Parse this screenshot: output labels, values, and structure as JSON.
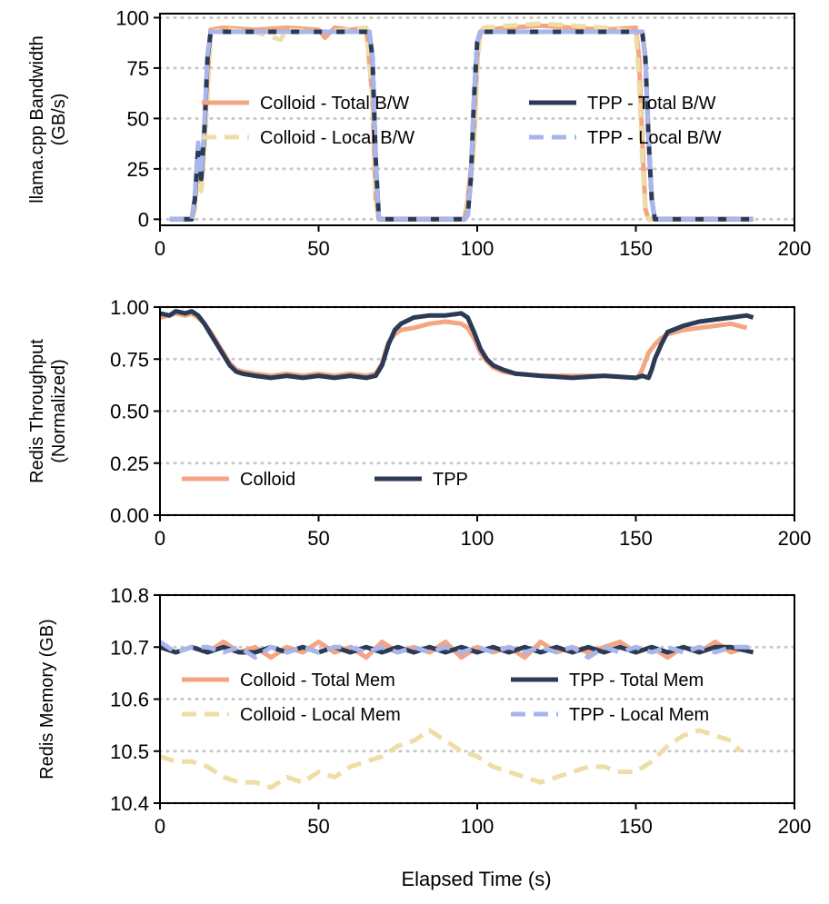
{
  "colors": {
    "colloid_total": "#F4A582",
    "colloid_local": "#EEDDA6",
    "tpp_total": "#2B3A55",
    "tpp_local": "#A9B6EC",
    "grid": "#C8C8C8"
  },
  "shared_xlabel": "Elapsed Time (s)",
  "chart_data": [
    {
      "type": "line",
      "ylabel_line1": "llama.cpp Bandwidth",
      "ylabel_line2": "(GB/s)",
      "xlim": [
        0,
        200
      ],
      "ylim": [
        -3,
        102
      ],
      "xticks": [
        0,
        50,
        100,
        150,
        200
      ],
      "yticks": [
        0,
        25,
        50,
        75,
        100
      ],
      "legend_position": "center",
      "series": [
        {
          "name": "Colloid - Total B/W",
          "color_key": "colloid_total",
          "dash": "solid",
          "x": [
            3,
            10,
            11,
            12,
            13,
            14,
            15,
            16,
            20,
            30,
            40,
            50,
            52,
            55,
            60,
            65,
            67,
            68,
            69,
            70,
            80,
            90,
            96,
            97,
            99,
            100,
            101,
            102,
            110,
            120,
            130,
            140,
            150,
            151,
            152,
            153,
            154,
            160,
            187
          ],
          "y": [
            0,
            0,
            10,
            30,
            18,
            40,
            70,
            94,
            95,
            94,
            95,
            94,
            90,
            95,
            94,
            95,
            60,
            10,
            0,
            0,
            0,
            0,
            0,
            10,
            40,
            80,
            93,
            94,
            95,
            96,
            95,
            94,
            95,
            80,
            40,
            5,
            0,
            0,
            0
          ]
        },
        {
          "name": "Colloid - Local B/W",
          "color_key": "colloid_local",
          "dash": "dashed",
          "x": [
            3,
            10,
            11,
            12,
            13,
            14,
            15,
            16,
            20,
            30,
            38,
            40,
            50,
            60,
            65,
            67,
            68,
            69,
            70,
            80,
            90,
            96,
            97,
            99,
            100,
            101,
            102,
            110,
            120,
            130,
            140,
            150,
            151,
            152,
            153,
            154,
            160,
            187
          ],
          "y": [
            0,
            0,
            5,
            25,
            14,
            35,
            60,
            93,
            94,
            93,
            89,
            94,
            93,
            94,
            95,
            60,
            10,
            0,
            0,
            0,
            0,
            0,
            8,
            35,
            75,
            93,
            95,
            96,
            97,
            96,
            95,
            93,
            70,
            30,
            5,
            0,
            0,
            0
          ]
        },
        {
          "name": "TPP - Total B/W",
          "color_key": "tpp_total",
          "dash": "solid",
          "x": [
            3,
            10,
            11,
            12,
            13,
            14,
            15,
            16,
            20,
            30,
            40,
            50,
            60,
            66,
            67,
            68,
            69,
            70,
            80,
            90,
            96,
            97,
            98,
            99,
            100,
            101,
            110,
            120,
            130,
            140,
            150,
            152,
            153,
            154,
            155,
            156,
            170,
            187
          ],
          "y": [
            0,
            0,
            10,
            35,
            20,
            45,
            80,
            93,
            93,
            93,
            93,
            93,
            93,
            93,
            80,
            30,
            0,
            0,
            0,
            0,
            0,
            2,
            20,
            60,
            88,
            93,
            93,
            93,
            93,
            93,
            93,
            93,
            80,
            40,
            10,
            0,
            0,
            0
          ]
        },
        {
          "name": "TPP - Local B/W",
          "color_key": "tpp_local",
          "dash": "dashed",
          "x": [
            3,
            10,
            11,
            12,
            13,
            14,
            15,
            16,
            20,
            30,
            40,
            50,
            60,
            66,
            67,
            68,
            69,
            70,
            80,
            90,
            96,
            97,
            98,
            99,
            100,
            101,
            110,
            120,
            130,
            140,
            150,
            152,
            153,
            154,
            155,
            156,
            170,
            187
          ],
          "y": [
            0,
            0,
            12,
            38,
            22,
            47,
            82,
            93,
            93,
            93,
            93,
            93,
            93,
            93,
            80,
            30,
            0,
            0,
            0,
            0,
            0,
            2,
            20,
            60,
            88,
            93,
            93,
            93,
            93,
            93,
            93,
            93,
            80,
            40,
            10,
            0,
            0,
            0
          ]
        }
      ]
    },
    {
      "type": "line",
      "ylabel_line1": "Redis Throughput",
      "ylabel_line2": "(Normalized)",
      "xlim": [
        0,
        200
      ],
      "ylim": [
        0,
        1.0
      ],
      "xticks": [
        0,
        50,
        100,
        150,
        200
      ],
      "ytick_labels": [
        "0.00",
        "0.25",
        "0.50",
        "0.75",
        "1.00"
      ],
      "yticks": [
        0,
        0.25,
        0.5,
        0.75,
        1.0
      ],
      "legend_position": "lower-left",
      "series": [
        {
          "name": "Colloid",
          "color_key": "colloid_total",
          "dash": "solid",
          "x": [
            0,
            3,
            5,
            8,
            10,
            12,
            14,
            16,
            18,
            20,
            22,
            24,
            26,
            30,
            35,
            40,
            45,
            50,
            55,
            60,
            65,
            68,
            70,
            72,
            74,
            76,
            80,
            85,
            90,
            95,
            97,
            99,
            101,
            103,
            105,
            108,
            112,
            120,
            130,
            140,
            150,
            151,
            152,
            153,
            154,
            156,
            158,
            160,
            165,
            170,
            175,
            180,
            185
          ],
          "y": [
            0.95,
            0.96,
            0.97,
            0.96,
            0.97,
            0.95,
            0.92,
            0.88,
            0.83,
            0.78,
            0.73,
            0.7,
            0.69,
            0.68,
            0.67,
            0.68,
            0.67,
            0.68,
            0.67,
            0.68,
            0.67,
            0.68,
            0.73,
            0.83,
            0.87,
            0.89,
            0.9,
            0.92,
            0.93,
            0.92,
            0.9,
            0.85,
            0.78,
            0.74,
            0.71,
            0.69,
            0.68,
            0.67,
            0.67,
            0.67,
            0.66,
            0.67,
            0.7,
            0.74,
            0.78,
            0.82,
            0.85,
            0.87,
            0.89,
            0.9,
            0.91,
            0.92,
            0.9
          ]
        },
        {
          "name": "TPP",
          "color_key": "tpp_total",
          "dash": "solid",
          "x": [
            0,
            3,
            5,
            8,
            10,
            12,
            14,
            16,
            18,
            20,
            22,
            24,
            26,
            30,
            35,
            40,
            45,
            50,
            55,
            60,
            65,
            68,
            70,
            72,
            74,
            76,
            80,
            85,
            90,
            95,
            97,
            99,
            101,
            103,
            105,
            108,
            112,
            120,
            130,
            140,
            150,
            152,
            154,
            155,
            156,
            158,
            160,
            165,
            170,
            175,
            180,
            185,
            187
          ],
          "y": [
            0.97,
            0.96,
            0.98,
            0.97,
            0.98,
            0.96,
            0.92,
            0.87,
            0.82,
            0.77,
            0.72,
            0.69,
            0.68,
            0.67,
            0.66,
            0.67,
            0.66,
            0.67,
            0.66,
            0.67,
            0.66,
            0.67,
            0.72,
            0.82,
            0.89,
            0.92,
            0.95,
            0.96,
            0.96,
            0.97,
            0.95,
            0.88,
            0.8,
            0.75,
            0.72,
            0.7,
            0.68,
            0.67,
            0.66,
            0.67,
            0.66,
            0.67,
            0.66,
            0.7,
            0.75,
            0.82,
            0.88,
            0.91,
            0.93,
            0.94,
            0.95,
            0.96,
            0.95
          ]
        }
      ]
    },
    {
      "type": "line",
      "ylabel_line1": "Redis Memory (GB)",
      "ylabel_line2": "",
      "xlim": [
        0,
        200
      ],
      "ylim": [
        10.4,
        10.8
      ],
      "xticks": [
        0,
        50,
        100,
        150,
        200
      ],
      "ytick_labels": [
        "10.4",
        "10.5",
        "10.6",
        "10.7",
        "10.8"
      ],
      "yticks": [
        10.4,
        10.5,
        10.6,
        10.7,
        10.8
      ],
      "legend_position": "center",
      "series": [
        {
          "name": "Colloid - Total Mem",
          "color_key": "colloid_total",
          "dash": "solid",
          "x": [
            0,
            5,
            10,
            15,
            20,
            25,
            30,
            35,
            40,
            45,
            50,
            55,
            60,
            65,
            70,
            75,
            80,
            85,
            90,
            95,
            100,
            105,
            110,
            115,
            120,
            125,
            130,
            135,
            140,
            145,
            150,
            155,
            160,
            165,
            170,
            175,
            180,
            185
          ],
          "y": [
            10.7,
            10.69,
            10.7,
            10.69,
            10.71,
            10.69,
            10.7,
            10.68,
            10.7,
            10.69,
            10.71,
            10.69,
            10.7,
            10.68,
            10.71,
            10.69,
            10.7,
            10.69,
            10.71,
            10.68,
            10.7,
            10.69,
            10.7,
            10.68,
            10.71,
            10.69,
            10.7,
            10.69,
            10.7,
            10.71,
            10.69,
            10.7,
            10.68,
            10.7,
            10.69,
            10.71,
            10.69,
            10.7
          ]
        },
        {
          "name": "Colloid - Local Mem",
          "color_key": "colloid_local",
          "dash": "dashed",
          "x": [
            0,
            5,
            10,
            15,
            20,
            25,
            30,
            35,
            40,
            45,
            50,
            55,
            60,
            65,
            70,
            75,
            80,
            85,
            90,
            95,
            100,
            105,
            110,
            115,
            120,
            125,
            130,
            135,
            140,
            145,
            150,
            155,
            160,
            165,
            170,
            175,
            180,
            183
          ],
          "y": [
            10.49,
            10.48,
            10.48,
            10.47,
            10.45,
            10.44,
            10.44,
            10.43,
            10.45,
            10.44,
            10.46,
            10.45,
            10.47,
            10.48,
            10.49,
            10.51,
            10.52,
            10.54,
            10.52,
            10.5,
            10.49,
            10.47,
            10.46,
            10.45,
            10.44,
            10.45,
            10.46,
            10.47,
            10.47,
            10.46,
            10.46,
            10.48,
            10.51,
            10.53,
            10.54,
            10.53,
            10.52,
            10.5
          ]
        },
        {
          "name": "TPP - Total Mem",
          "color_key": "tpp_total",
          "dash": "solid",
          "x": [
            0,
            5,
            10,
            15,
            20,
            25,
            30,
            35,
            40,
            45,
            50,
            55,
            60,
            65,
            70,
            75,
            80,
            85,
            90,
            95,
            100,
            105,
            110,
            115,
            120,
            125,
            130,
            135,
            140,
            145,
            150,
            155,
            160,
            165,
            170,
            175,
            180,
            187
          ],
          "y": [
            10.7,
            10.69,
            10.7,
            10.69,
            10.7,
            10.69,
            10.69,
            10.7,
            10.69,
            10.7,
            10.69,
            10.7,
            10.69,
            10.7,
            10.69,
            10.7,
            10.69,
            10.7,
            10.69,
            10.7,
            10.69,
            10.7,
            10.69,
            10.7,
            10.69,
            10.7,
            10.69,
            10.7,
            10.69,
            10.7,
            10.69,
            10.7,
            10.69,
            10.7,
            10.69,
            10.7,
            10.7,
            10.69
          ]
        },
        {
          "name": "TPP - Local Mem",
          "color_key": "tpp_local",
          "dash": "dashed",
          "x": [
            0,
            5,
            10,
            15,
            20,
            25,
            30,
            35,
            40,
            45,
            50,
            55,
            60,
            65,
            70,
            75,
            80,
            85,
            90,
            95,
            100,
            105,
            110,
            115,
            120,
            125,
            130,
            135,
            140,
            145,
            150,
            155,
            160,
            165,
            170,
            175,
            180,
            187
          ],
          "y": [
            10.71,
            10.69,
            10.7,
            10.7,
            10.69,
            10.7,
            10.68,
            10.7,
            10.69,
            10.7,
            10.69,
            10.7,
            10.7,
            10.69,
            10.7,
            10.69,
            10.7,
            10.69,
            10.7,
            10.69,
            10.7,
            10.69,
            10.7,
            10.69,
            10.7,
            10.69,
            10.7,
            10.68,
            10.7,
            10.69,
            10.7,
            10.69,
            10.7,
            10.69,
            10.7,
            10.69,
            10.7,
            10.7
          ]
        }
      ]
    }
  ]
}
